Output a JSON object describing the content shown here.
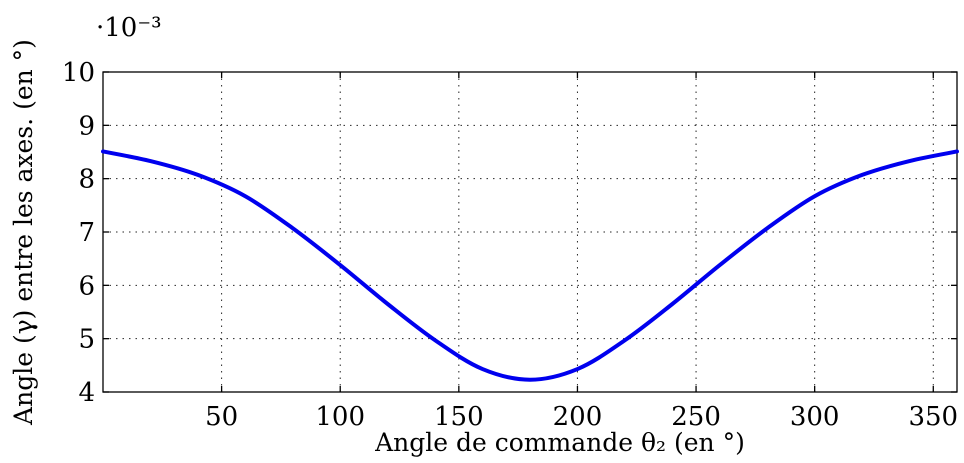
{
  "chart_data": {
    "type": "line",
    "title": "",
    "xlabel": "Angle de commande θ₂ (en °)",
    "ylabel": "Angle (γ) entre les axes. (en °)",
    "y_multiplier": "·10⁻³",
    "xlim": [
      0,
      360
    ],
    "ylim": [
      4,
      10
    ],
    "xticks": [
      50,
      100,
      150,
      200,
      250,
      300,
      350
    ],
    "yticks": [
      4,
      5,
      6,
      7,
      8,
      9,
      10
    ],
    "grid": true,
    "series": [
      {
        "color": "#0000ee",
        "x": [
          0,
          20,
          40,
          60,
          80,
          100,
          120,
          140,
          160,
          180,
          200,
          220,
          240,
          260,
          280,
          300,
          320,
          340,
          360
        ],
        "y": [
          8.51,
          8.33,
          8.07,
          7.67,
          7.07,
          6.38,
          5.65,
          4.97,
          4.43,
          4.23,
          4.43,
          4.97,
          5.65,
          6.38,
          7.07,
          7.67,
          8.07,
          8.33,
          8.51
        ]
      }
    ]
  }
}
